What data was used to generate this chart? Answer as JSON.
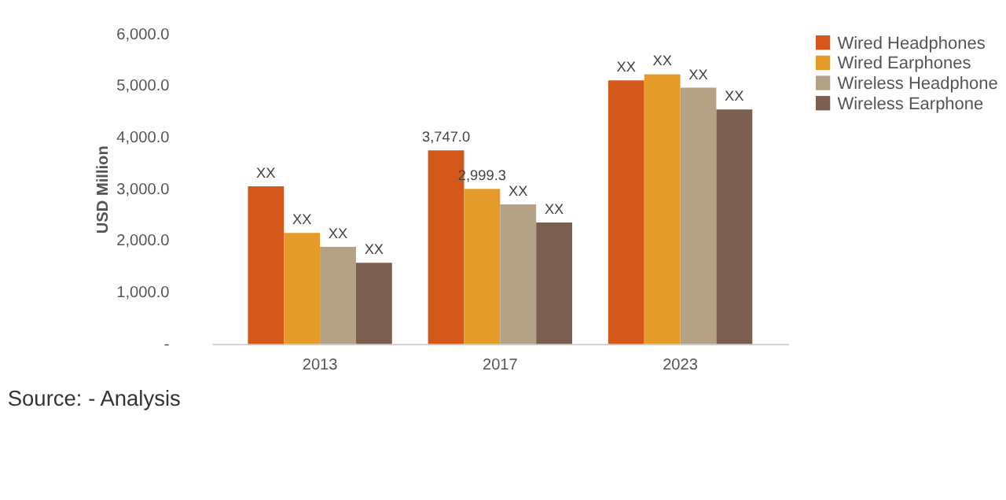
{
  "chart_data": {
    "type": "bar",
    "ylabel": "USD Million",
    "categories": [
      "2013",
      "2017",
      "2023"
    ],
    "series": [
      {
        "name": "Wired Headphones",
        "color": "#d4581a",
        "values": [
          3050,
          3747.0,
          5100
        ],
        "value_labels": [
          "XX",
          "3,747.0",
          "XX"
        ]
      },
      {
        "name": "Wired Earphones",
        "color": "#e49b2a",
        "values": [
          2150,
          2999.3,
          5220
        ],
        "value_labels": [
          "XX",
          "2,999.3",
          "XX"
        ]
      },
      {
        "name": "Wireless Headphone",
        "color": "#b3a286",
        "values": [
          1880,
          2700,
          4960
        ],
        "value_labels": [
          "XX",
          "XX",
          "XX"
        ]
      },
      {
        "name": "Wireless Earphone",
        "color": "#7c5e51",
        "values": [
          1570,
          2350,
          4540
        ],
        "value_labels": [
          "XX",
          "XX",
          "XX"
        ]
      }
    ],
    "ylim": [
      0,
      6000
    ],
    "yticks": [
      {
        "value": 0,
        "label": "-"
      },
      {
        "value": 1000,
        "label": "1,000.0"
      },
      {
        "value": 2000,
        "label": "2,000.0"
      },
      {
        "value": 3000,
        "label": "3,000.0"
      },
      {
        "value": 4000,
        "label": "4,000.0"
      },
      {
        "value": 5000,
        "label": "5,000.0"
      },
      {
        "value": 6000,
        "label": "6,000.0"
      }
    ],
    "grid": false,
    "legend": "right",
    "annotations": [
      "Source: - Analysis"
    ]
  }
}
